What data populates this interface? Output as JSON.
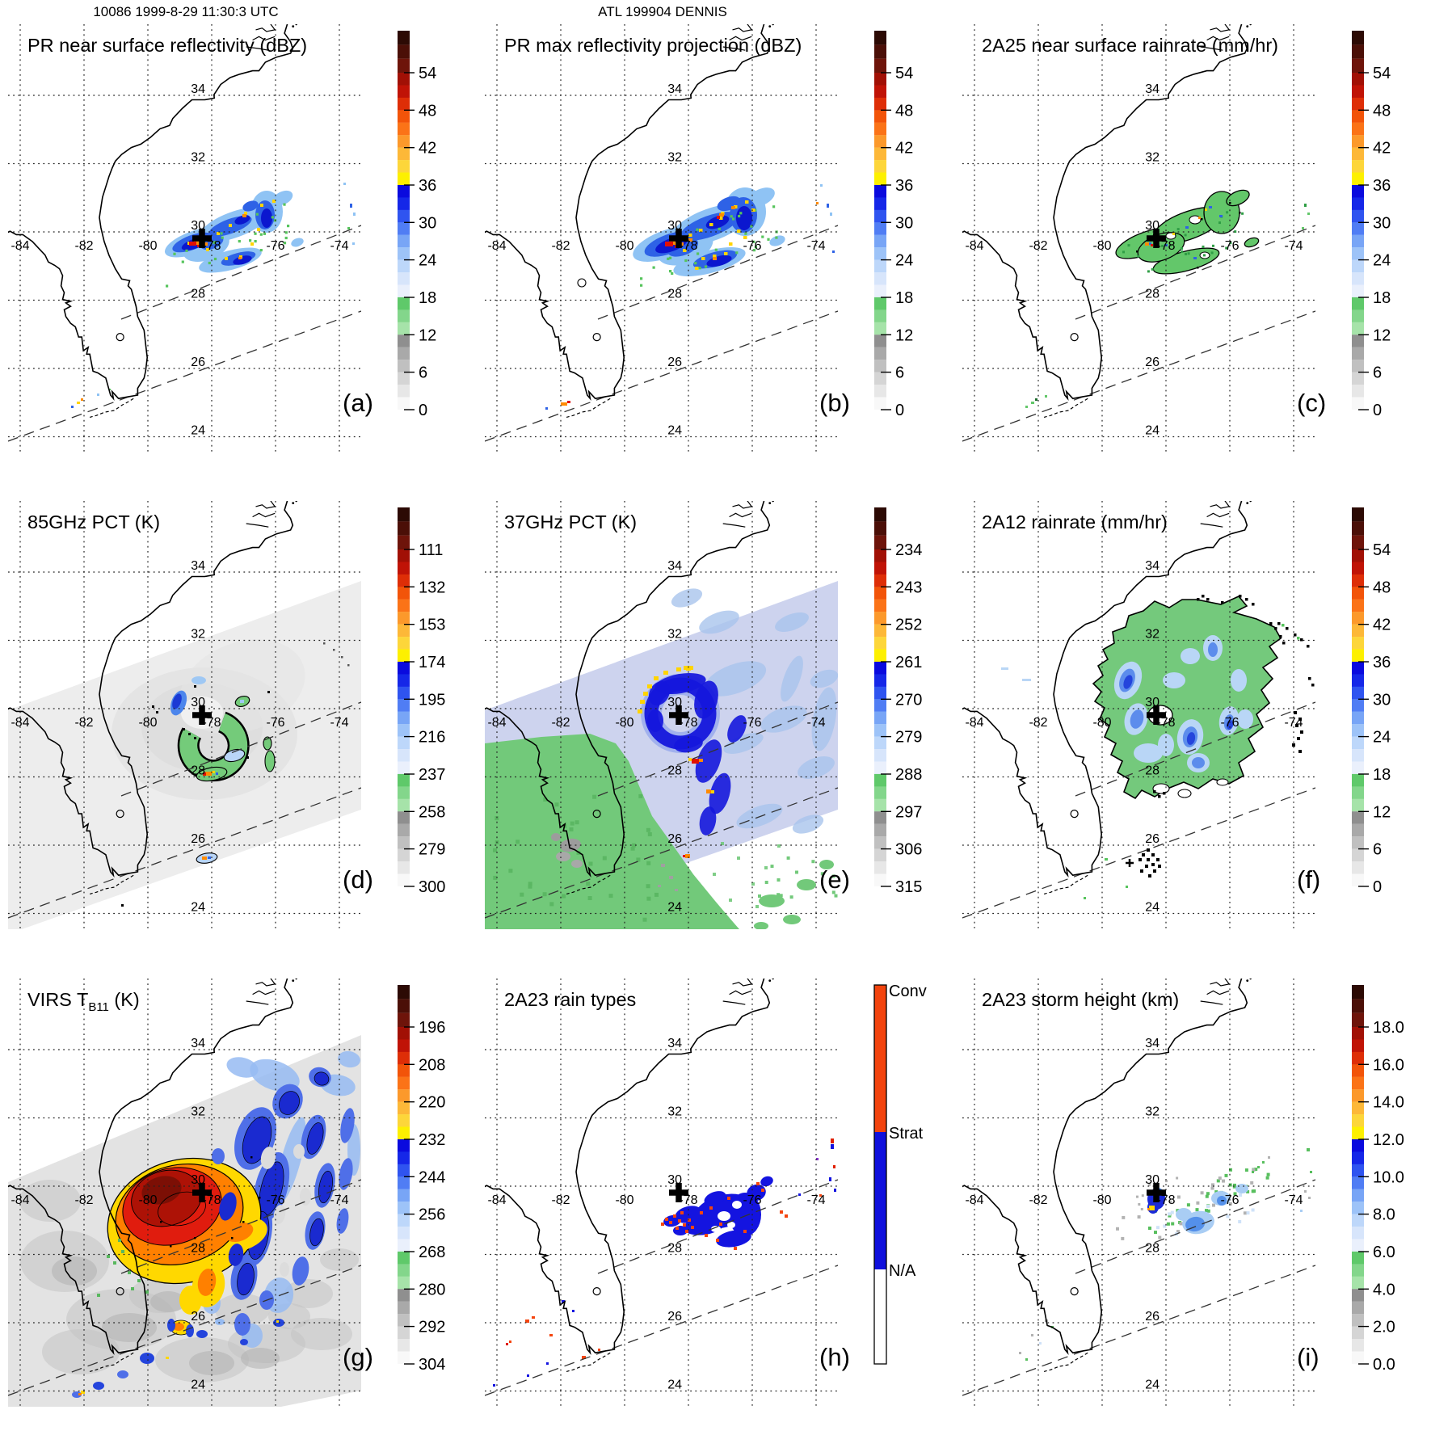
{
  "header": {
    "scan": "10086 1999-8-29 11:30:3 UTC",
    "storm": "ATL 199904 DENNIS"
  },
  "axis": {
    "lat": [
      "34",
      "32",
      "30",
      "28",
      "26",
      "24"
    ],
    "lon": [
      "-84",
      "-82",
      "-80",
      "-78",
      "-76",
      "-74"
    ]
  },
  "scales": {
    "dbz": [
      "54",
      "48",
      "42",
      "36",
      "30",
      "24",
      "18",
      "12",
      "6",
      "0"
    ],
    "pct85": [
      "111",
      "132",
      "153",
      "174",
      "195",
      "216",
      "237",
      "258",
      "279",
      "300"
    ],
    "pct37": [
      "234",
      "243",
      "252",
      "261",
      "270",
      "279",
      "288",
      "297",
      "306",
      "315"
    ],
    "tb11": [
      "196",
      "208",
      "220",
      "232",
      "244",
      "256",
      "268",
      "280",
      "292",
      "304"
    ],
    "km": [
      "18.0",
      "16.0",
      "14.0",
      "12.0",
      "10.0",
      "8.0",
      "6.0",
      "4.0",
      "2.0",
      "0.0"
    ],
    "raintype": [
      "Conv",
      "Strat",
      "N/A"
    ]
  },
  "panels": [
    {
      "letter": "(a)",
      "title": "PR near surface reflectivity (dBZ)",
      "scale": "dbz"
    },
    {
      "letter": "(b)",
      "title": "PR max reflectivity projection (dBZ)",
      "scale": "dbz"
    },
    {
      "letter": "(c)",
      "title": "2A25 near surface rainrate (mm/hr)",
      "scale": "dbz"
    },
    {
      "letter": "(d)",
      "title": "85GHz PCT (K)",
      "scale": "pct85"
    },
    {
      "letter": "(e)",
      "title": "37GHz PCT (K)",
      "scale": "pct37"
    },
    {
      "letter": "(f)",
      "title": "2A12 rainrate (mm/hr)",
      "scale": "dbz"
    },
    {
      "letter": "(g)",
      "title": "VIRS T",
      "title_sub": "B11",
      "title_tail": " (K)",
      "scale": "tb11"
    },
    {
      "letter": "(h)",
      "title": "2A23 rain types",
      "scale": "raintype"
    },
    {
      "letter": "(i)",
      "title": "2A23 storm height (km)",
      "scale": "km"
    }
  ],
  "chart_data": {
    "type": "heatmap",
    "title": "TRMM overpass 10086 1999-8-29 11:30:3 UTC, ATL 199904 DENNIS",
    "lon_ticks": [
      -84,
      -82,
      -80,
      -78,
      -76,
      -74
    ],
    "lat_ticks": [
      34,
      32,
      30,
      28,
      26,
      24
    ],
    "grid": true,
    "storm_center": {
      "lon": -78.3,
      "lat": 29.8
    },
    "panels": [
      {
        "label": "a",
        "title": "PR near surface reflectivity (dBZ)",
        "units": "dBZ",
        "colorbar_ticks": [
          54,
          48,
          42,
          36,
          30,
          24,
          18,
          12,
          6,
          0
        ]
      },
      {
        "label": "b",
        "title": "PR max reflectivity projection (dBZ)",
        "units": "dBZ",
        "colorbar_ticks": [
          54,
          48,
          42,
          36,
          30,
          24,
          18,
          12,
          6,
          0
        ]
      },
      {
        "label": "c",
        "title": "2A25 near surface rainrate (mm/hr)",
        "units": "mm/hr",
        "colorbar_ticks": [
          54,
          48,
          42,
          36,
          30,
          24,
          18,
          12,
          6,
          0
        ]
      },
      {
        "label": "d",
        "title": "85GHz PCT (K)",
        "units": "K",
        "colorbar_ticks": [
          111,
          132,
          153,
          174,
          195,
          216,
          237,
          258,
          279,
          300
        ]
      },
      {
        "label": "e",
        "title": "37GHz PCT (K)",
        "units": "K",
        "colorbar_ticks": [
          234,
          243,
          252,
          261,
          270,
          279,
          288,
          297,
          306,
          315
        ]
      },
      {
        "label": "f",
        "title": "2A12 rainrate (mm/hr)",
        "units": "mm/hr",
        "colorbar_ticks": [
          54,
          48,
          42,
          36,
          30,
          24,
          18,
          12,
          6,
          0
        ]
      },
      {
        "label": "g",
        "title": "VIRS TB11 (K)",
        "units": "K",
        "colorbar_ticks": [
          196,
          208,
          220,
          232,
          244,
          256,
          268,
          280,
          292,
          304
        ]
      },
      {
        "label": "h",
        "title": "2A23 rain types",
        "categories": [
          "Conv",
          "Strat",
          "N/A"
        ]
      },
      {
        "label": "i",
        "title": "2A23 storm height (km)",
        "units": "km",
        "colorbar_ticks": [
          18.0,
          16.0,
          14.0,
          12.0,
          10.0,
          8.0,
          6.0,
          4.0,
          2.0,
          0.0
        ]
      }
    ]
  }
}
